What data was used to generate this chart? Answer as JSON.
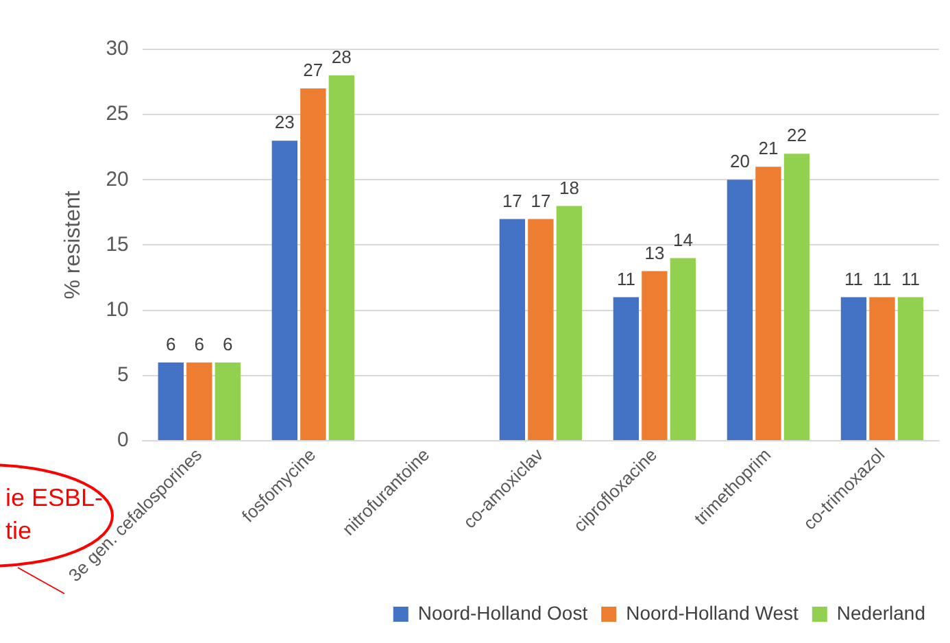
{
  "chart_data": {
    "type": "bar",
    "ylabel": "% resistent",
    "categories": [
      "3e gen. cefalosporines",
      "fosfomycine",
      "nitrofurantoine",
      "co-amoxiclav",
      "ciprofloxacine",
      "trimethoprim",
      "co-trimoxazol"
    ],
    "series": [
      {
        "name": "Noord-Holland Oost",
        "color": "#4472c4",
        "values": [
          6,
          23,
          null,
          17,
          11,
          20,
          11
        ]
      },
      {
        "name": "Noord-Holland West",
        "color": "#ed7d31",
        "values": [
          6,
          27,
          null,
          17,
          13,
          21,
          11
        ]
      },
      {
        "name": "Nederland",
        "color": "#92d050",
        "values": [
          6,
          28,
          null,
          18,
          14,
          22,
          11
        ]
      }
    ],
    "ylim": [
      0,
      30
    ],
    "yticks": [
      0,
      5,
      10,
      15,
      20,
      25,
      30
    ],
    "grid": "y",
    "legend": "bottom right",
    "data_labels": true,
    "annotations": [
      "ie ESBL-",
      "tie"
    ]
  }
}
